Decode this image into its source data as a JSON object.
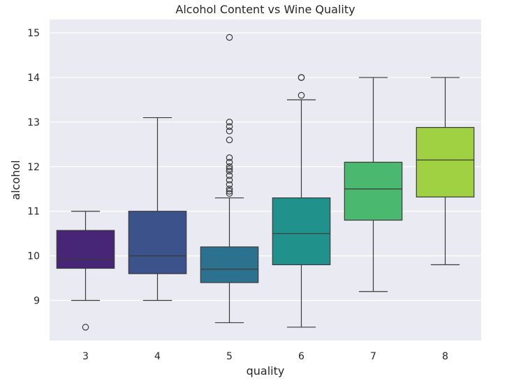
{
  "chart_data": {
    "type": "box",
    "title": "Alcohol Content vs Wine Quality",
    "xlabel": "quality",
    "ylabel": "alcohol",
    "categories": [
      "3",
      "4",
      "5",
      "6",
      "7",
      "8"
    ],
    "ylim": [
      8.1,
      15.3
    ],
    "yticks": [
      9,
      10,
      11,
      12,
      13,
      14,
      15
    ],
    "grid": true,
    "boxes": [
      {
        "category": "3",
        "whisker_low": 9.0,
        "q1": 9.72,
        "median": 9.92,
        "q3": 10.57,
        "whisker_high": 11.0,
        "outliers": [
          8.4
        ],
        "color": "#482677"
      },
      {
        "category": "4",
        "whisker_low": 9.0,
        "q1": 9.6,
        "median": 10.0,
        "q3": 11.0,
        "whisker_high": 13.1,
        "outliers": [],
        "color": "#3b528b"
      },
      {
        "category": "5",
        "whisker_low": 8.5,
        "q1": 9.4,
        "median": 9.7,
        "q3": 10.2,
        "whisker_high": 11.3,
        "outliers": [
          11.4,
          11.45,
          11.5,
          11.6,
          11.7,
          11.8,
          11.9,
          11.95,
          12.0,
          12.1,
          12.2,
          12.6,
          12.8,
          12.9,
          13.0,
          14.9
        ],
        "color": "#2c728e"
      },
      {
        "category": "6",
        "whisker_low": 8.4,
        "q1": 9.8,
        "median": 10.5,
        "q3": 11.3,
        "whisker_high": 13.5,
        "outliers": [
          13.6,
          14.0,
          14.0
        ],
        "color": "#21918c"
      },
      {
        "category": "7",
        "whisker_low": 9.2,
        "q1": 10.8,
        "median": 11.5,
        "q3": 12.1,
        "whisker_high": 14.0,
        "outliers": [],
        "color": "#4ab86e"
      },
      {
        "category": "8",
        "whisker_low": 9.8,
        "q1": 11.32,
        "median": 12.15,
        "q3": 12.88,
        "whisker_high": 14.0,
        "outliers": [],
        "color": "#9fd142"
      }
    ],
    "colors": {
      "background": "#eaeaf2",
      "grid": "#ffffff",
      "line": "#3a3a3a"
    }
  }
}
